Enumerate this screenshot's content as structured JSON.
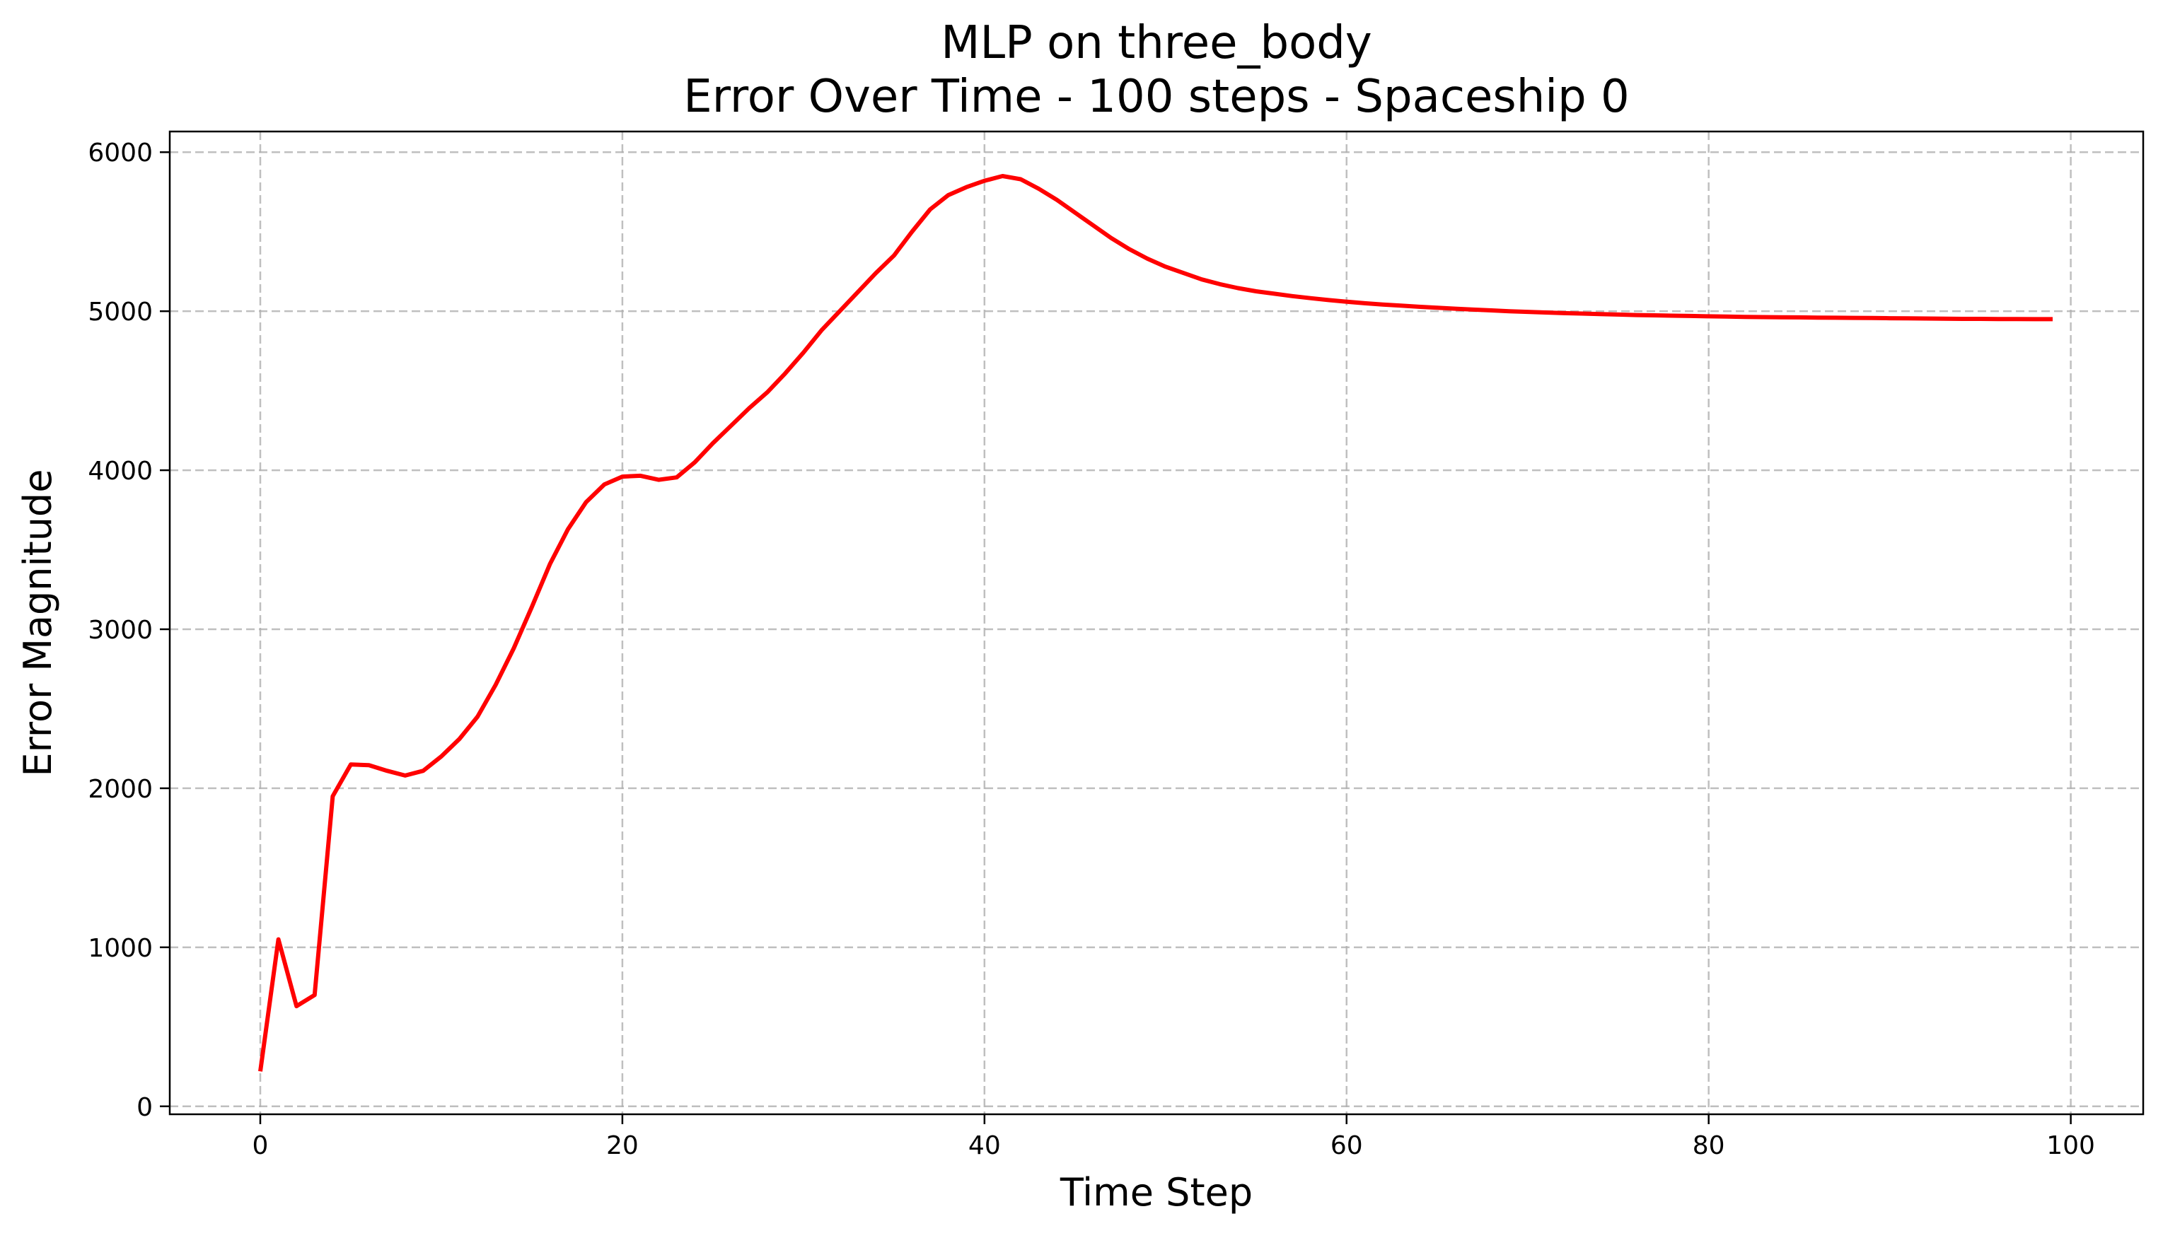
{
  "chart_data": {
    "type": "line",
    "title": "MLP on three_body",
    "subtitle": "Error Over Time - 100 steps - Spaceship 0",
    "xlabel": "Time Step",
    "ylabel": "Error Magnitude",
    "xlim": [
      -5,
      104
    ],
    "ylim": [
      -50,
      6130
    ],
    "xticks": [
      0,
      20,
      40,
      60,
      80,
      100
    ],
    "yticks": [
      0,
      1000,
      2000,
      3000,
      4000,
      5000,
      6000
    ],
    "grid": true,
    "legend": "none",
    "series": [
      {
        "color": "#ff0000",
        "x": [
          0,
          1,
          2,
          3,
          4,
          5,
          6,
          7,
          8,
          9,
          10,
          11,
          12,
          13,
          14,
          15,
          16,
          17,
          18,
          19,
          20,
          21,
          22,
          23,
          24,
          25,
          26,
          27,
          28,
          29,
          30,
          31,
          32,
          33,
          34,
          35,
          36,
          37,
          38,
          39,
          40,
          41,
          42,
          43,
          44,
          45,
          46,
          47,
          48,
          49,
          50,
          51,
          52,
          53,
          54,
          55,
          56,
          57,
          58,
          59,
          60,
          61,
          62,
          63,
          64,
          65,
          66,
          67,
          68,
          69,
          70,
          71,
          72,
          73,
          74,
          75,
          76,
          77,
          78,
          79,
          80,
          81,
          82,
          83,
          84,
          85,
          86,
          87,
          88,
          89,
          90,
          91,
          92,
          93,
          94,
          95,
          96,
          97,
          98,
          99
        ],
        "y": [
          220,
          1050,
          630,
          700,
          1950,
          2150,
          2145,
          2110,
          2080,
          2110,
          2200,
          2310,
          2450,
          2650,
          2880,
          3140,
          3410,
          3630,
          3800,
          3910,
          3960,
          3965,
          3940,
          3955,
          4050,
          4170,
          4280,
          4390,
          4490,
          4610,
          4740,
          4880,
          5000,
          5120,
          5240,
          5350,
          5500,
          5640,
          5730,
          5780,
          5820,
          5850,
          5830,
          5770,
          5700,
          5620,
          5540,
          5460,
          5390,
          5330,
          5280,
          5240,
          5200,
          5170,
          5145,
          5125,
          5110,
          5095,
          5082,
          5070,
          5060,
          5050,
          5042,
          5035,
          5028,
          5022,
          5016,
          5010,
          5005,
          5000,
          4996,
          4992,
          4988,
          4985,
          4982,
          4979,
          4976,
          4974,
          4972,
          4970,
          4968,
          4966,
          4964,
          4963,
          4962,
          4961,
          4960,
          4959,
          4958,
          4957,
          4956,
          4955,
          4954,
          4953,
          4952,
          4952,
          4951,
          4951,
          4950,
          4950
        ]
      }
    ]
  }
}
